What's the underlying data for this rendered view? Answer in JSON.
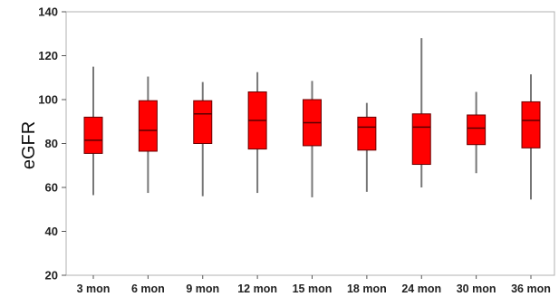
{
  "chart_data": {
    "type": "boxplot",
    "title": "",
    "xlabel": "",
    "ylabel": "eGFR",
    "ylim": [
      20,
      140
    ],
    "yticks": [
      20,
      40,
      60,
      80,
      100,
      120,
      140
    ],
    "grid": false,
    "box_color": "#ff0000",
    "categories": [
      "3 mon",
      "6 mon",
      "9 mon",
      "12 mon",
      "15 mon",
      "18 mon",
      "24 mon",
      "30 mon",
      "36 mon"
    ],
    "boxes": [
      {
        "category": "3 mon",
        "min": 56.5,
        "q1": 75.5,
        "median": 81.5,
        "q3": 92.0,
        "max": 115.0
      },
      {
        "category": "6 mon",
        "min": 57.5,
        "q1": 76.5,
        "median": 86.0,
        "q3": 99.5,
        "max": 110.5
      },
      {
        "category": "9 mon",
        "min": 56.0,
        "q1": 80.0,
        "median": 93.5,
        "q3": 99.5,
        "max": 108.0
      },
      {
        "category": "12 mon",
        "min": 57.5,
        "q1": 77.5,
        "median": 90.5,
        "q3": 103.5,
        "max": 112.5
      },
      {
        "category": "15 mon",
        "min": 55.5,
        "q1": 79.0,
        "median": 89.5,
        "q3": 100.0,
        "max": 108.5
      },
      {
        "category": "18 mon",
        "min": 58.0,
        "q1": 77.0,
        "median": 87.5,
        "q3": 92.0,
        "max": 98.5
      },
      {
        "category": "24 mon",
        "min": 60.0,
        "q1": 70.5,
        "median": 87.5,
        "q3": 93.5,
        "max": 128.0
      },
      {
        "category": "30 mon",
        "min": 66.5,
        "q1": 79.5,
        "median": 87.0,
        "q3": 93.0,
        "max": 103.5
      },
      {
        "category": "36 mon",
        "min": 54.5,
        "q1": 78.0,
        "median": 90.5,
        "q3": 99.0,
        "max": 111.5
      }
    ]
  }
}
